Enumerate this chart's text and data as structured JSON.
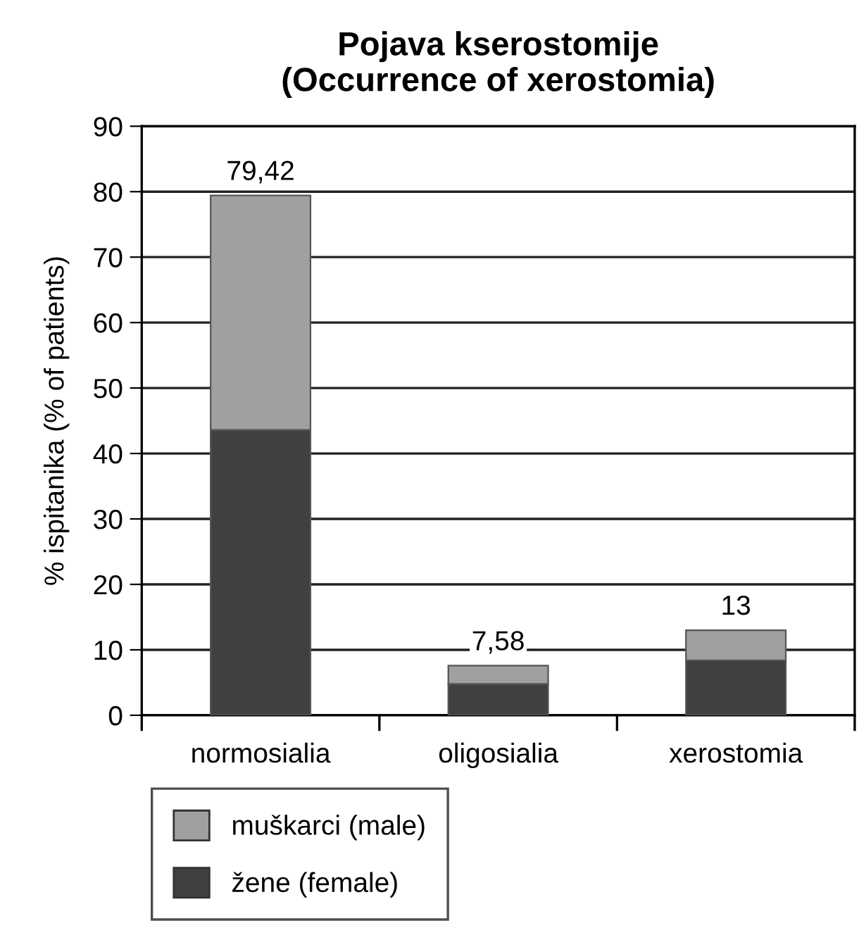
{
  "chart_data": {
    "type": "bar",
    "stacked": true,
    "title": "Pojava kserostomije\n(Occurrence of xerostomia)",
    "ylabel": "% ispitanika (% of patients)",
    "categories": [
      "normosialia",
      "oligosialia",
      "xerostomia"
    ],
    "series": [
      {
        "name": "žene (female)",
        "color": "#404040",
        "values": [
          43.6,
          4.8,
          8.4
        ]
      },
      {
        "name": "muškarci (male)",
        "color": "#a0a0a0",
        "values": [
          35.82,
          2.78,
          4.6
        ]
      }
    ],
    "totals": [
      "79,42",
      "7,58",
      "13"
    ],
    "ylim": [
      0,
      90
    ],
    "yticks": [
      0,
      10,
      20,
      30,
      40,
      50,
      60,
      70,
      80,
      90
    ],
    "grid": "y",
    "legend": "bottom left"
  }
}
